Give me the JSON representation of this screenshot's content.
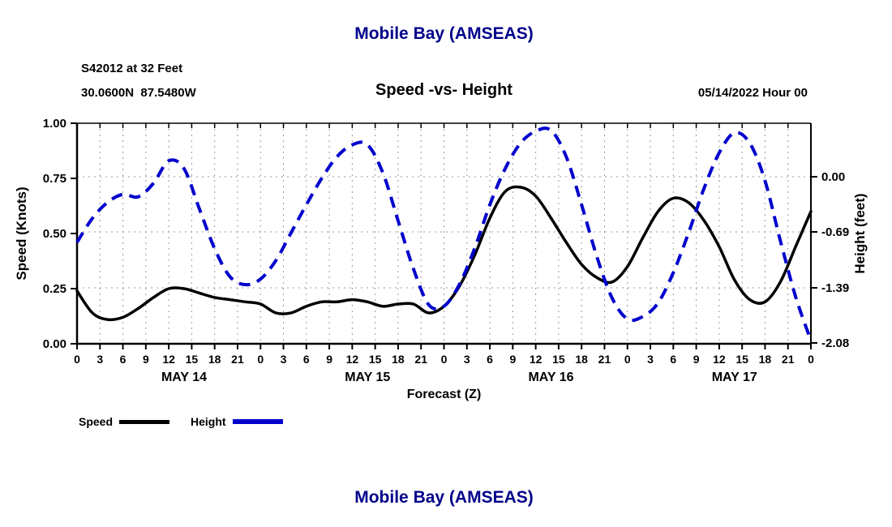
{
  "page": {
    "title_top": "Mobile Bay (AMSEAS)",
    "title_bottom": "Mobile Bay (AMSEAS)"
  },
  "header": {
    "station_line1": "S42012 at 32 Feet",
    "station_line2": "30.0600N  87.5480W",
    "subtitle": "Speed -vs- Height",
    "datetime": "05/14/2022 Hour 00"
  },
  "legend": {
    "speed_label": "Speed",
    "height_label": "Height"
  },
  "colors": {
    "speed": "#000000",
    "height": "#0000cd",
    "title": "#00008b",
    "grid": "#9a9a9a",
    "axis": "#000000"
  },
  "chart_data": {
    "type": "line",
    "title": "Speed -vs- Height",
    "x_label": "Forecast (Z)",
    "total_hours": 96,
    "x_tick_step": 3,
    "x_label_cycle": 24,
    "grid": true,
    "legend_position": "bottom-left",
    "day_labels": [
      {
        "label": "MAY 14",
        "hour": 14
      },
      {
        "label": "MAY 15",
        "hour": 38
      },
      {
        "label": "MAY 16",
        "hour": 62
      },
      {
        "label": "MAY 17",
        "hour": 86
      }
    ],
    "left_axis": {
      "label": "Speed (Knots)",
      "range": [
        0,
        1
      ],
      "ticks": [
        {
          "v": 0.0,
          "label": "0.00"
        },
        {
          "v": 0.25,
          "label": "0.25"
        },
        {
          "v": 0.5,
          "label": "0.50"
        },
        {
          "v": 0.75,
          "label": "0.75"
        },
        {
          "v": 1.0,
          "label": "1.00"
        }
      ]
    },
    "right_axis": {
      "label": "Height (feet)",
      "range": [
        -2.09,
        0.67
      ],
      "ticks": [
        {
          "v": 0.0,
          "label": "0.00"
        },
        {
          "v": -0.69,
          "label": "-0.69"
        },
        {
          "v": -1.39,
          "label": "-1.39"
        },
        {
          "v": -2.08,
          "label": "-2.08"
        }
      ],
      "grid_ticks": [
        0.0,
        -0.69,
        -1.39
      ]
    },
    "x_hours": [
      0,
      2,
      4,
      6,
      8,
      10,
      12,
      14,
      16,
      18,
      20,
      22,
      24,
      26,
      28,
      30,
      32,
      34,
      36,
      38,
      40,
      42,
      44,
      46,
      48,
      50,
      52,
      54,
      56,
      58,
      60,
      62,
      64,
      66,
      68,
      70,
      72,
      74,
      76,
      78,
      80,
      82,
      84,
      86,
      88,
      90,
      92,
      94,
      96
    ],
    "series": [
      {
        "name": "Speed",
        "axis": "left",
        "color": "#000000",
        "dash": null,
        "width": 3.5,
        "values": [
          0.24,
          0.14,
          0.11,
          0.12,
          0.16,
          0.21,
          0.25,
          0.25,
          0.23,
          0.21,
          0.2,
          0.19,
          0.18,
          0.14,
          0.14,
          0.17,
          0.19,
          0.19,
          0.2,
          0.19,
          0.17,
          0.18,
          0.18,
          0.14,
          0.17,
          0.26,
          0.4,
          0.57,
          0.69,
          0.71,
          0.67,
          0.57,
          0.46,
          0.36,
          0.3,
          0.28,
          0.35,
          0.48,
          0.6,
          0.66,
          0.64,
          0.56,
          0.44,
          0.29,
          0.2,
          0.19,
          0.28,
          0.44,
          0.6
        ]
      },
      {
        "name": "Height",
        "axis": "right",
        "color": "#0000cd",
        "dash": "14,9",
        "width": 4,
        "values": [
          -0.82,
          -0.52,
          -0.32,
          -0.22,
          -0.25,
          -0.08,
          0.2,
          0.1,
          -0.4,
          -0.9,
          -1.25,
          -1.35,
          -1.28,
          -1.05,
          -0.7,
          -0.35,
          -0.02,
          0.25,
          0.4,
          0.4,
          0.05,
          -0.55,
          -1.15,
          -1.6,
          -1.62,
          -1.35,
          -0.9,
          -0.35,
          0.1,
          0.42,
          0.57,
          0.58,
          0.25,
          -0.35,
          -1.0,
          -1.52,
          -1.78,
          -1.75,
          -1.58,
          -1.2,
          -0.7,
          -0.15,
          0.3,
          0.55,
          0.42,
          -0.05,
          -0.8,
          -1.5,
          -2.05
        ]
      }
    ]
  }
}
